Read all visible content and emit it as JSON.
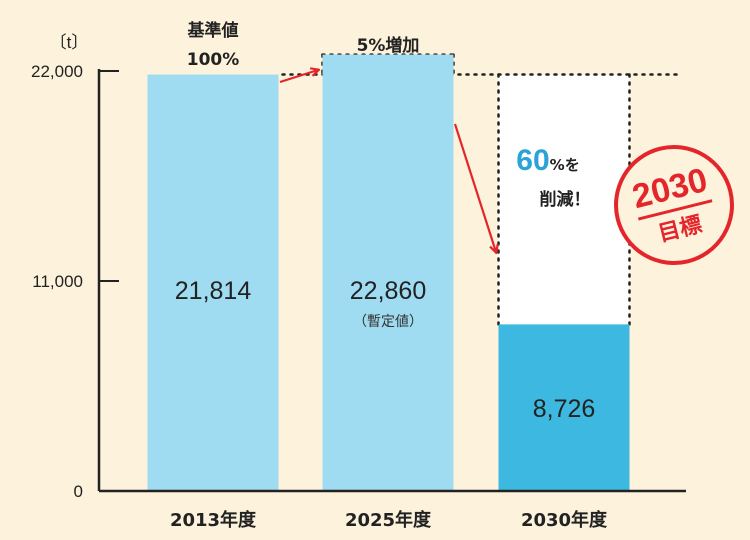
{
  "chart_data": {
    "type": "bar",
    "unit": "〔t〕",
    "ylim": [
      0,
      22000
    ],
    "yticks": [
      "0",
      "11,000",
      "22,000"
    ],
    "yticks_values": [
      0,
      11000,
      22000
    ],
    "categories": [
      "2013年度",
      "2025年度",
      "2030年度"
    ],
    "values": [
      21814,
      22860,
      8726
    ],
    "value_labels": [
      "21,814",
      "22,860",
      "8,726"
    ],
    "value_notes": [
      "",
      "（暫定値）",
      ""
    ],
    "bar_colors": [
      "#9fdbf1",
      "#9fdbf1",
      "#3db8e0"
    ],
    "category_colors": [
      "#222222",
      "#2aa3d6",
      "#222222"
    ],
    "annotations": {
      "baseline_line1": "基準値",
      "baseline_line2": "100%",
      "increase": "5%増加",
      "reduction_number": "60",
      "reduction_percent": "%を",
      "reduction_line2": "削減！",
      "stamp_year": "2030",
      "stamp_label": "目標"
    },
    "colors": {
      "accent": "#2aa3d6",
      "arrow": "#e4262c",
      "stamp": "#e4262c"
    }
  }
}
